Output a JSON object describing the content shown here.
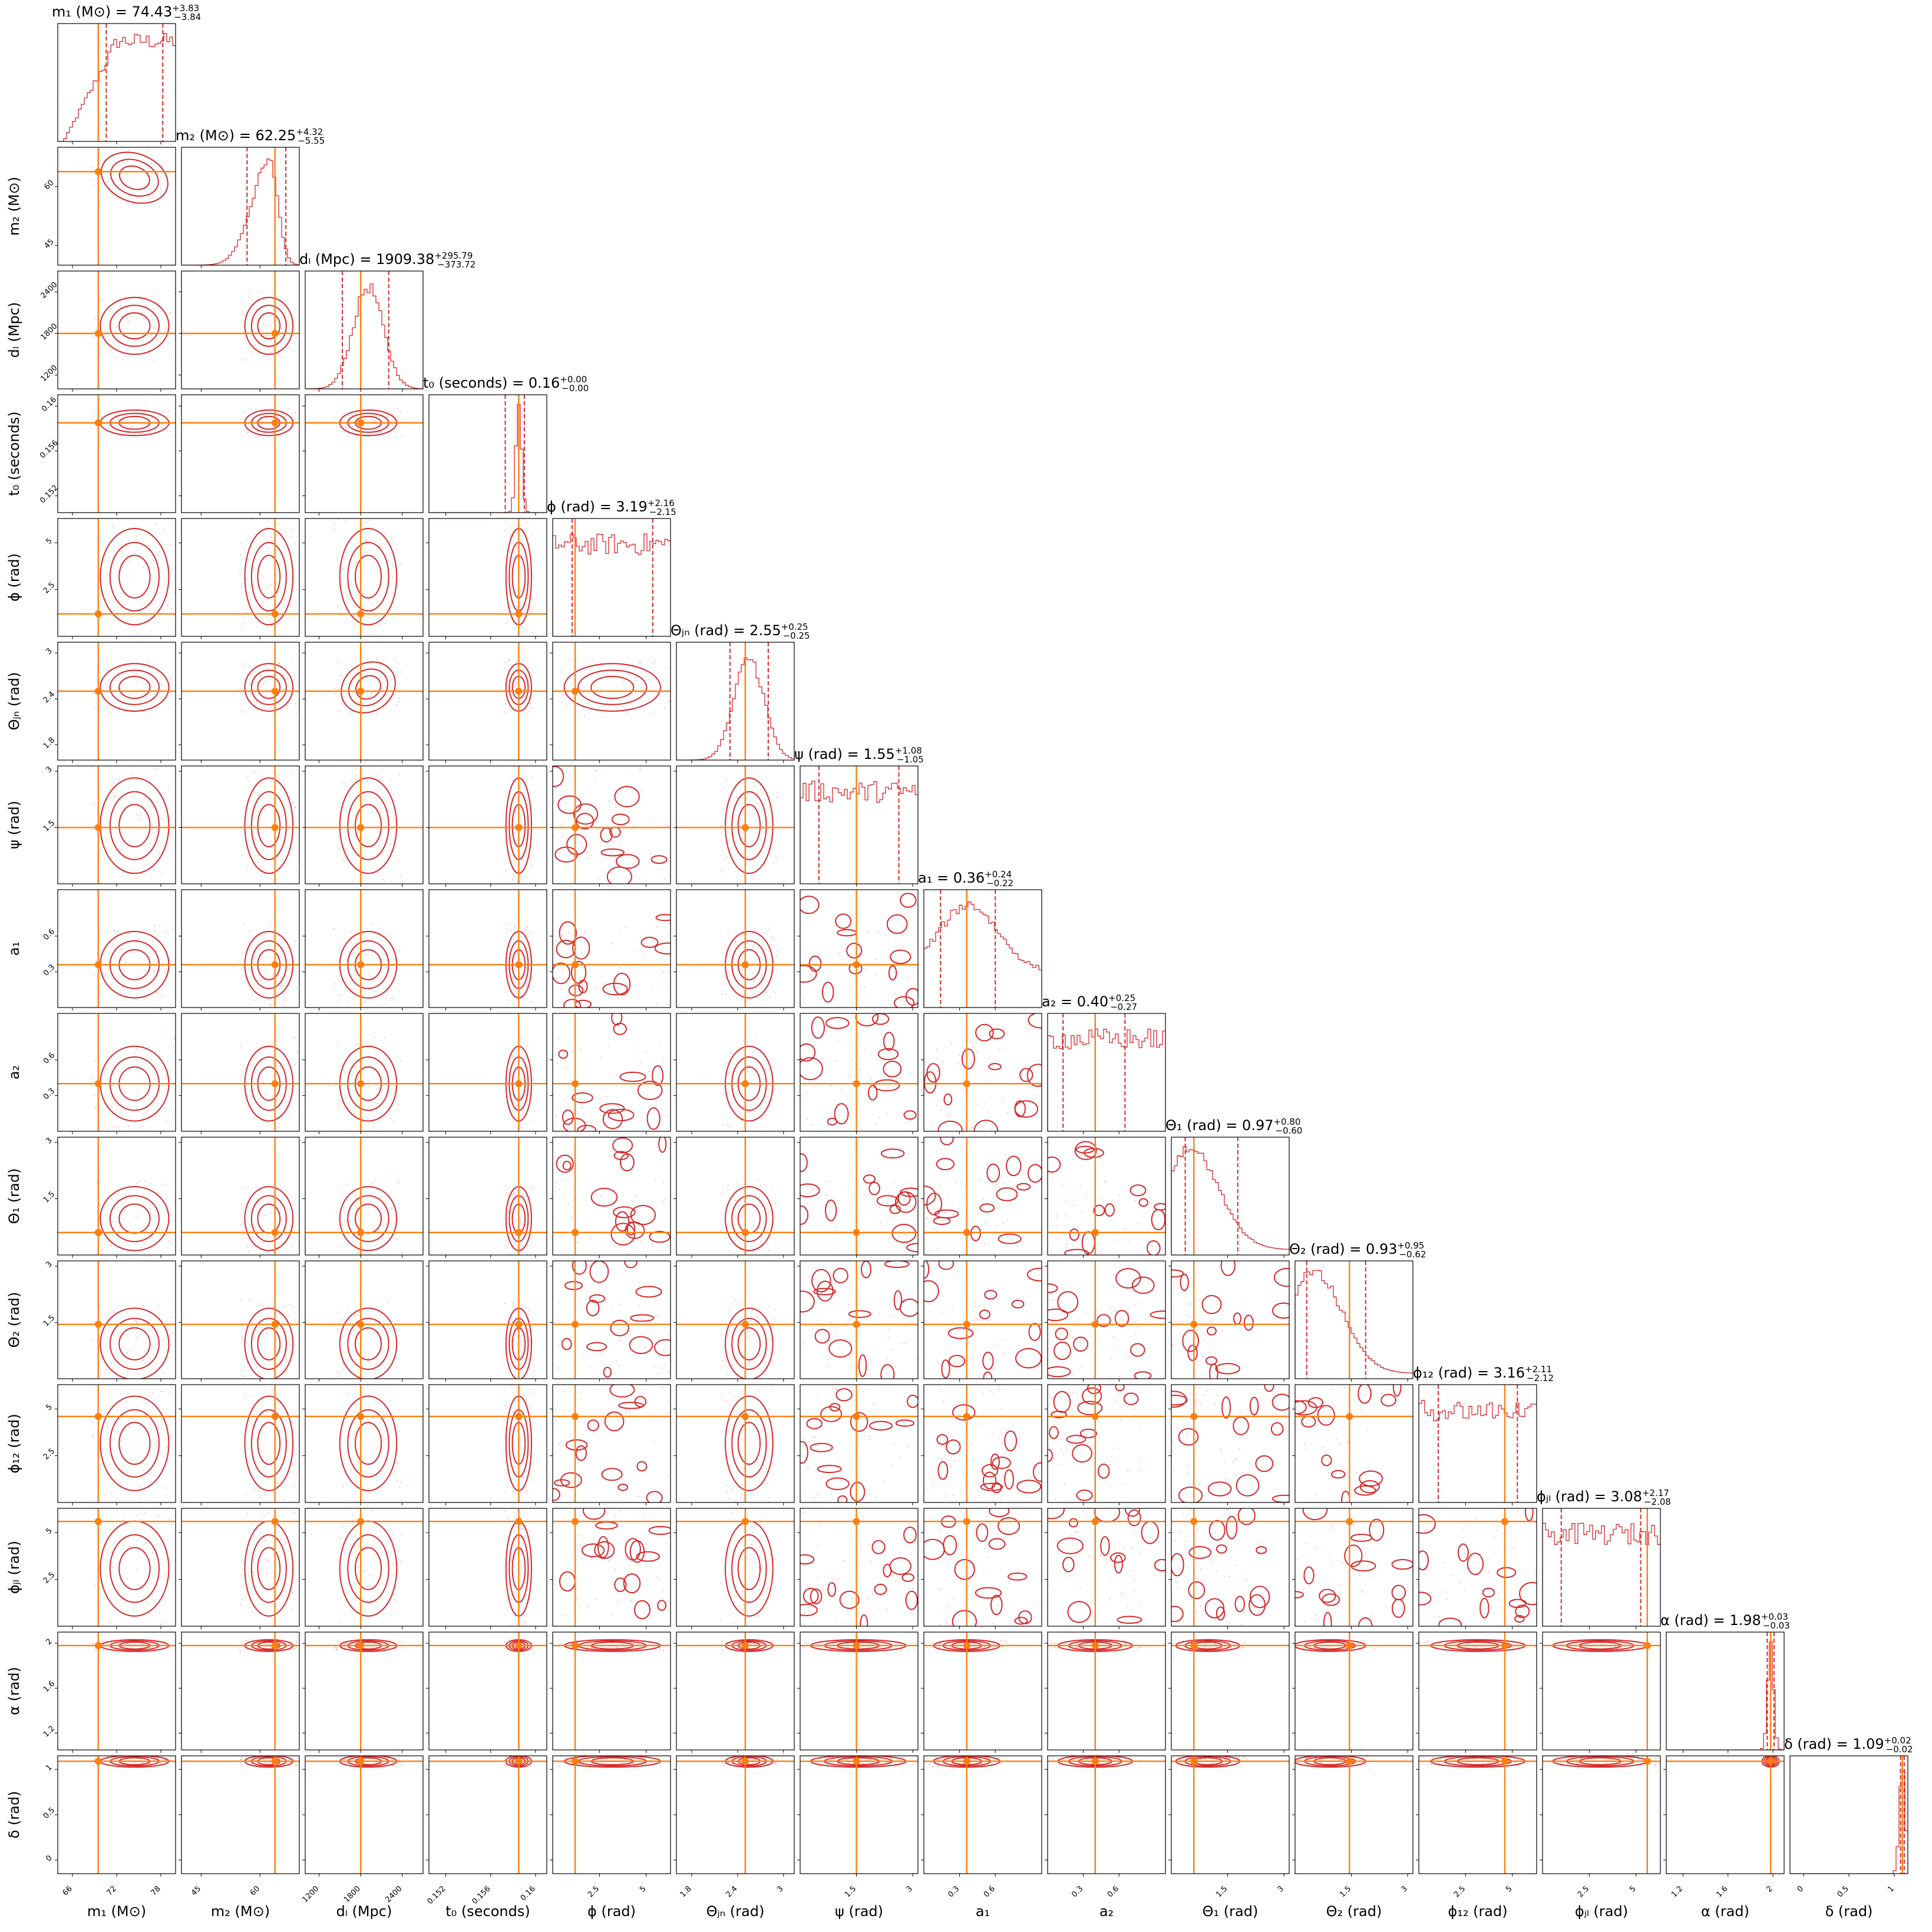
{
  "chart_data": {
    "type": "corner",
    "colors": {
      "contour": "#d62728",
      "truth": "#ff7f0e",
      "axes": "#000000"
    },
    "parameters": [
      {
        "name": "m1",
        "label": "m₁ (M⊙)",
        "title_value": "74.43",
        "upper": "+3.83",
        "lower": "−3.84",
        "range": [
          64,
          80
        ],
        "ticks": [
          66,
          72,
          78
        ],
        "truth": 69.5,
        "median": 74.43,
        "q_lo": 70.59,
        "q_hi": 78.26
      },
      {
        "name": "m2",
        "label": "m₂ (M⊙)",
        "title_value": "62.25",
        "upper": "+4.32",
        "lower": "−5.55",
        "range": [
          40,
          70
        ],
        "ticks": [
          45,
          60
        ],
        "truth": 63.8,
        "median": 62.25,
        "q_lo": 56.7,
        "q_hi": 66.57
      },
      {
        "name": "dL",
        "label": "dₗ (Mpc)",
        "title_value": "1909.38",
        "upper": "+295.79",
        "lower": "−373.72",
        "range": [
          1000,
          2700
        ],
        "ticks": [
          1200,
          1800,
          2400
        ],
        "truth": 1800,
        "median": 1909.38,
        "q_lo": 1535.66,
        "q_hi": 2205.17
      },
      {
        "name": "t0",
        "label": "t₀ (seconds)",
        "title_value": "0.16",
        "upper": "+0.00",
        "lower": "−0.00",
        "range": [
          0.1505,
          0.161
        ],
        "ticks": [
          0.152,
          0.156,
          0.16
        ],
        "truth": 0.1585,
        "median": 0.1585,
        "q_lo": 0.1573,
        "q_hi": 0.159
      },
      {
        "name": "phi",
        "label": "ϕ (rad)",
        "title_value": "3.19",
        "upper": "+2.16",
        "lower": "−2.15",
        "range": [
          0,
          6.3
        ],
        "ticks": [
          2.5,
          5.0
        ],
        "truth": 1.2,
        "median": 3.19,
        "q_lo": 1.04,
        "q_hi": 5.35
      },
      {
        "name": "thetajn",
        "label": "Θⱼₙ (rad)",
        "title_value": "2.55",
        "upper": "+0.25",
        "lower": "−0.25",
        "range": [
          1.6,
          3.14
        ],
        "ticks": [
          1.8,
          2.4,
          3.0
        ],
        "truth": 2.5,
        "median": 2.55,
        "q_lo": 2.3,
        "q_hi": 2.8
      },
      {
        "name": "psi",
        "label": "ψ (rad)",
        "title_value": "1.55",
        "upper": "+1.08",
        "lower": "−1.05",
        "range": [
          0,
          3.14
        ],
        "ticks": [
          1.5,
          3.0
        ],
        "truth": 1.5,
        "median": 1.55,
        "q_lo": 0.5,
        "q_hi": 2.63
      },
      {
        "name": "a1",
        "label": "a₁",
        "title_value": "0.36",
        "upper": "+0.24",
        "lower": "−0.22",
        "range": [
          0,
          0.99
        ],
        "ticks": [
          0.3,
          0.6
        ],
        "truth": 0.36,
        "median": 0.36,
        "q_lo": 0.14,
        "q_hi": 0.6
      },
      {
        "name": "a2",
        "label": "a₂",
        "title_value": "0.40",
        "upper": "+0.25",
        "lower": "−0.27",
        "range": [
          0,
          0.99
        ],
        "ticks": [
          0.3,
          0.6
        ],
        "truth": 0.4,
        "median": 0.4,
        "q_lo": 0.13,
        "q_hi": 0.65
      },
      {
        "name": "theta1",
        "label": "Θ₁ (rad)",
        "title_value": "0.97",
        "upper": "+0.80",
        "lower": "−0.60",
        "range": [
          0,
          3.14
        ],
        "ticks": [
          1.5,
          3.0
        ],
        "truth": 0.6,
        "median": 0.97,
        "q_lo": 0.37,
        "q_hi": 1.77
      },
      {
        "name": "theta2",
        "label": "Θ₂ (rad)",
        "title_value": "0.93",
        "upper": "+0.95",
        "lower": "−0.62",
        "range": [
          0,
          3.14
        ],
        "ticks": [
          1.5,
          3.0
        ],
        "truth": 1.45,
        "median": 0.93,
        "q_lo": 0.31,
        "q_hi": 1.88
      },
      {
        "name": "phi12",
        "label": "ϕ₁₂ (rad)",
        "title_value": "3.16",
        "upper": "+2.11",
        "lower": "−2.12",
        "range": [
          0,
          6.3
        ],
        "ticks": [
          2.5,
          5.0
        ],
        "truth": 4.6,
        "median": 3.16,
        "q_lo": 1.04,
        "q_hi": 5.27
      },
      {
        "name": "phijl",
        "label": "ϕⱼₗ (rad)",
        "title_value": "3.08",
        "upper": "+2.17",
        "lower": "−2.08",
        "range": [
          0,
          6.3
        ],
        "ticks": [
          2.5,
          5.0
        ],
        "truth": 5.6,
        "median": 3.08,
        "q_lo": 1.0,
        "q_hi": 5.25
      },
      {
        "name": "alpha",
        "label": "α (rad)",
        "title_value": "1.98",
        "upper": "+0.03",
        "lower": "−0.03",
        "range": [
          1.05,
          2.1
        ],
        "ticks": [
          1.2,
          1.6,
          2.0
        ],
        "truth": 1.98,
        "median": 1.98,
        "q_lo": 1.95,
        "q_hi": 2.01
      },
      {
        "name": "delta",
        "label": "δ (rad)",
        "title_value": "1.09",
        "upper": "+0.02",
        "lower": "−0.02",
        "range": [
          -0.15,
          1.15
        ],
        "ticks": [
          0.0,
          0.5,
          1.0
        ],
        "truth": 1.09,
        "median": 1.09,
        "q_lo": 1.07,
        "q_hi": 1.11
      }
    ],
    "marginal_shape": [
      "rising",
      "skew-right",
      "gaussian",
      "narrow",
      "flat",
      "gaussian",
      "flat",
      "broad-hump",
      "flat",
      "decay",
      "decay",
      "flat",
      "flat",
      "narrow",
      "narrow"
    ]
  }
}
